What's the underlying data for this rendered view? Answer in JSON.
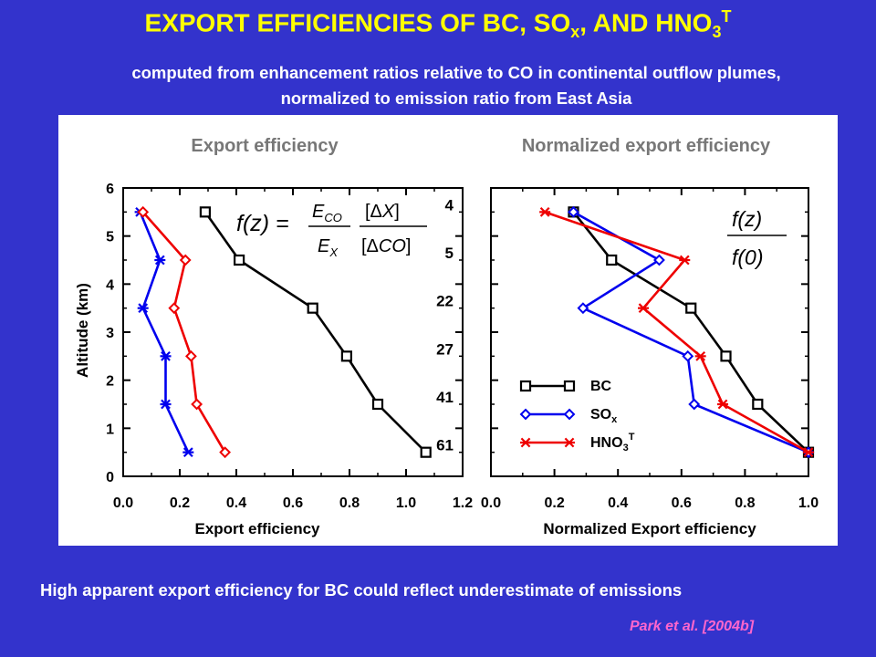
{
  "header": {
    "title_main": "EXPORT EFFICIENCIES OF BC, SO",
    "title_so_sub": "x",
    "title_mid": ", AND HNO",
    "title_hno_sub": "3",
    "title_hno_sup": "T",
    "subtitle_line1": "computed from enhancement ratios relative to CO in continental outflow plumes,",
    "subtitle_line2": "normalized to emission ratio from East Asia"
  },
  "footer": {
    "text": "High apparent export efficiency for BC could reflect underestimate of emissions",
    "citation": "Park et al. [2004b]"
  },
  "colors": {
    "background": "#3333cc",
    "title": "#ffff00",
    "BC": "#000000",
    "SOx": "#0000ee",
    "HNO3T": "#ee0000",
    "citation": "#ff66cc"
  },
  "chart_data": [
    {
      "type": "line",
      "panel_title": "Export efficiency",
      "xlabel": "Export efficiency",
      "ylabel": "Altitude (km)",
      "xlim": [
        0.0,
        1.2
      ],
      "ylim": [
        0,
        6
      ],
      "xticks": [
        "0.0",
        "0.2",
        "0.4",
        "0.6",
        "0.8",
        "1.0",
        "1.2"
      ],
      "yticks": [
        "0",
        "1",
        "2",
        "3",
        "4",
        "5",
        "6"
      ],
      "formula": "f(z) = (E_CO / E_X) [ΔX] / [ΔCO]",
      "sample_counts": [
        {
          "altitude": 5.5,
          "n": "4"
        },
        {
          "altitude": 4.5,
          "n": "5"
        },
        {
          "altitude": 3.5,
          "n": "22"
        },
        {
          "altitude": 2.5,
          "n": "27"
        },
        {
          "altitude": 1.5,
          "n": "41"
        },
        {
          "altitude": 0.5,
          "n": "61"
        }
      ],
      "series": [
        {
          "key": "BC",
          "marker": "square",
          "x": [
            0.29,
            0.41,
            0.67,
            0.79,
            0.9,
            1.07
          ],
          "y": [
            5.5,
            4.5,
            3.5,
            2.5,
            1.5,
            0.5
          ]
        },
        {
          "key": "SOx",
          "marker": "asterisk",
          "x": [
            0.06,
            0.13,
            0.07,
            0.15,
            0.15,
            0.23
          ],
          "y": [
            5.5,
            4.5,
            3.5,
            2.5,
            1.5,
            0.5
          ]
        },
        {
          "key": "HNO3T",
          "marker": "diamond",
          "x": [
            0.07,
            0.22,
            0.18,
            0.24,
            0.26,
            0.36
          ],
          "y": [
            5.5,
            4.5,
            3.5,
            2.5,
            1.5,
            0.5
          ]
        }
      ]
    },
    {
      "type": "line",
      "panel_title": "Normalized export efficiency",
      "xlabel": "Normalized Export efficiency",
      "ylabel": "",
      "xlim": [
        0.0,
        1.0
      ],
      "ylim": [
        0,
        6
      ],
      "xticks": [
        "0.0",
        "0.2",
        "0.4",
        "0.6",
        "0.8",
        "1.0"
      ],
      "formula": "f(z) / f(0)",
      "legend_position": "lower-left",
      "series": [
        {
          "key": "BC",
          "name": "BC",
          "marker": "square",
          "x": [
            0.26,
            0.38,
            0.63,
            0.74,
            0.84,
            1.0
          ],
          "y": [
            5.5,
            4.5,
            3.5,
            2.5,
            1.5,
            0.5
          ]
        },
        {
          "key": "SOx",
          "name": "SO",
          "name_sub": "x",
          "marker": "diamond",
          "x": [
            0.26,
            0.53,
            0.29,
            0.62,
            0.64,
            1.0
          ],
          "y": [
            5.5,
            4.5,
            3.5,
            2.5,
            1.5,
            0.5
          ]
        },
        {
          "key": "HNO3T",
          "name": "HNO",
          "name_sub": "3",
          "name_sup": "T",
          "marker": "asterisk",
          "x": [
            0.17,
            0.61,
            0.48,
            0.66,
            0.73,
            1.0
          ],
          "y": [
            5.5,
            4.5,
            3.5,
            2.5,
            1.5,
            0.5
          ]
        }
      ]
    }
  ]
}
